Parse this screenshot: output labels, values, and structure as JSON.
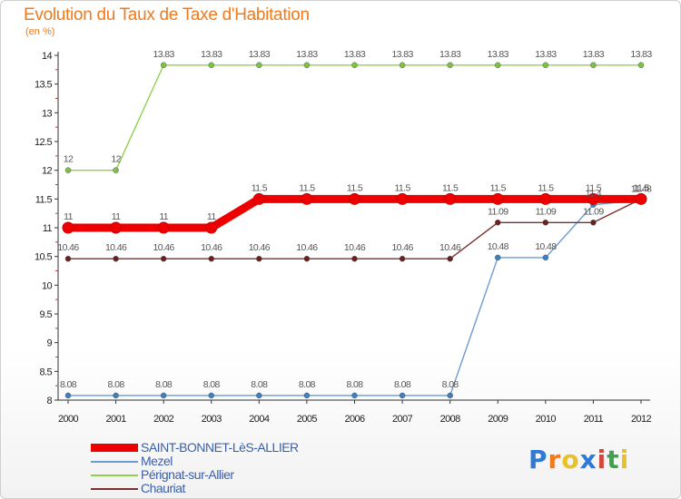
{
  "title": "Evolution du Taux de Taxe d'Habitation",
  "subtitle": "(en %)",
  "logo": {
    "text": "Proxiti",
    "colors": [
      "#2f7ad6",
      "#f07a1d",
      "#e8c12a",
      "#2f7ad6",
      "#d6453a",
      "#3fa34d",
      "#e8c12a"
    ]
  },
  "chart_data": {
    "type": "line",
    "title": "Evolution du Taux de Taxe d'Habitation",
    "ylabel": "(en %)",
    "xlabel": "",
    "x": [
      "2000",
      "2001",
      "2002",
      "2003",
      "2004",
      "2005",
      "2006",
      "2007",
      "2008",
      "2009",
      "2010",
      "2011",
      "2012"
    ],
    "ylim": [
      8,
      14
    ],
    "yticks": [
      "8",
      "8.5",
      "9",
      "9.5",
      "10",
      "10.5",
      "11",
      "11.5",
      "12",
      "12.5",
      "13",
      "13.5",
      "14"
    ],
    "grid": false,
    "legend_position": "bottom-left",
    "series": [
      {
        "name": "Mezel",
        "color": "#6b9bcf",
        "dot": "#3b7fc4",
        "values": [
          8.08,
          8.08,
          8.08,
          8.08,
          8.08,
          8.08,
          8.08,
          8.08,
          8.08,
          10.48,
          10.48,
          11.4,
          11.48
        ],
        "labels": [
          "8.08",
          "8.08",
          "8.08",
          "8.08",
          "8.08",
          "8.08",
          "8.08",
          "8.08",
          "8.08",
          "10.48",
          "10.48",
          "11.4",
          "11.48"
        ]
      },
      {
        "name": "Chauriat",
        "color": "#7a3030",
        "dot": "#6b1f1f",
        "values": [
          10.46,
          10.46,
          10.46,
          10.46,
          10.46,
          10.46,
          10.46,
          10.46,
          10.46,
          11.09,
          11.09,
          11.09,
          11.5
        ],
        "labels": [
          "10.46",
          "10.46",
          "10.46",
          "10.46",
          "10.46",
          "10.46",
          "10.46",
          "10.46",
          "10.46",
          "11.09",
          "11.09",
          "11.09",
          "11.5"
        ]
      },
      {
        "name": "Pérignat-sur-Allier",
        "color": "#8fd14f",
        "dot": "#7cc43f",
        "values": [
          12,
          12,
          13.83,
          13.83,
          13.83,
          13.83,
          13.83,
          13.83,
          13.83,
          13.83,
          13.83,
          13.83,
          13.83
        ],
        "labels": [
          "12",
          "12",
          "13.83",
          "13.83",
          "13.83",
          "13.83",
          "13.83",
          "13.83",
          "13.83",
          "13.83",
          "13.83",
          "13.83",
          "13.83"
        ]
      },
      {
        "name": "SAINT-BONNET-LèS-ALLIER",
        "color": "#ee0000",
        "dot": "#ee0000",
        "values": [
          11,
          11,
          11,
          11,
          11.5,
          11.5,
          11.5,
          11.5,
          11.5,
          11.5,
          11.5,
          11.5,
          11.5
        ],
        "labels": [
          "11",
          "11",
          "11",
          "11",
          "11.5",
          "11.5",
          "11.5",
          "11.5",
          "11.5",
          "11.5",
          "11.5",
          "11.5",
          "11.5"
        ]
      }
    ],
    "legend": [
      "SAINT-BONNET-LèS-ALLIER",
      "Mezel",
      "Pérignat-sur-Allier",
      "Chauriat"
    ]
  }
}
